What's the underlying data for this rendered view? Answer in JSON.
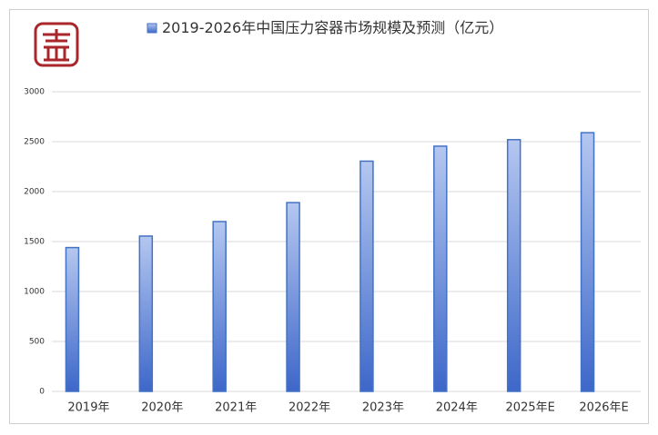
{
  "chart_data": {
    "type": "bar",
    "title": "2019-2026年中国压力容器市场规模及预测（亿元）",
    "categories": [
      "2019年",
      "2020年",
      "2021年",
      "2022年",
      "2023年",
      "2024年",
      "2025年E",
      "2026年E"
    ],
    "values": [
      1440,
      1555,
      1700,
      1890,
      2305,
      2455,
      2520,
      2590
    ],
    "color": "#4472c4",
    "ylim": [
      0,
      3000
    ],
    "yticks": [
      0,
      500,
      1000,
      1500,
      2000,
      2500,
      3000
    ],
    "grid": true
  }
}
